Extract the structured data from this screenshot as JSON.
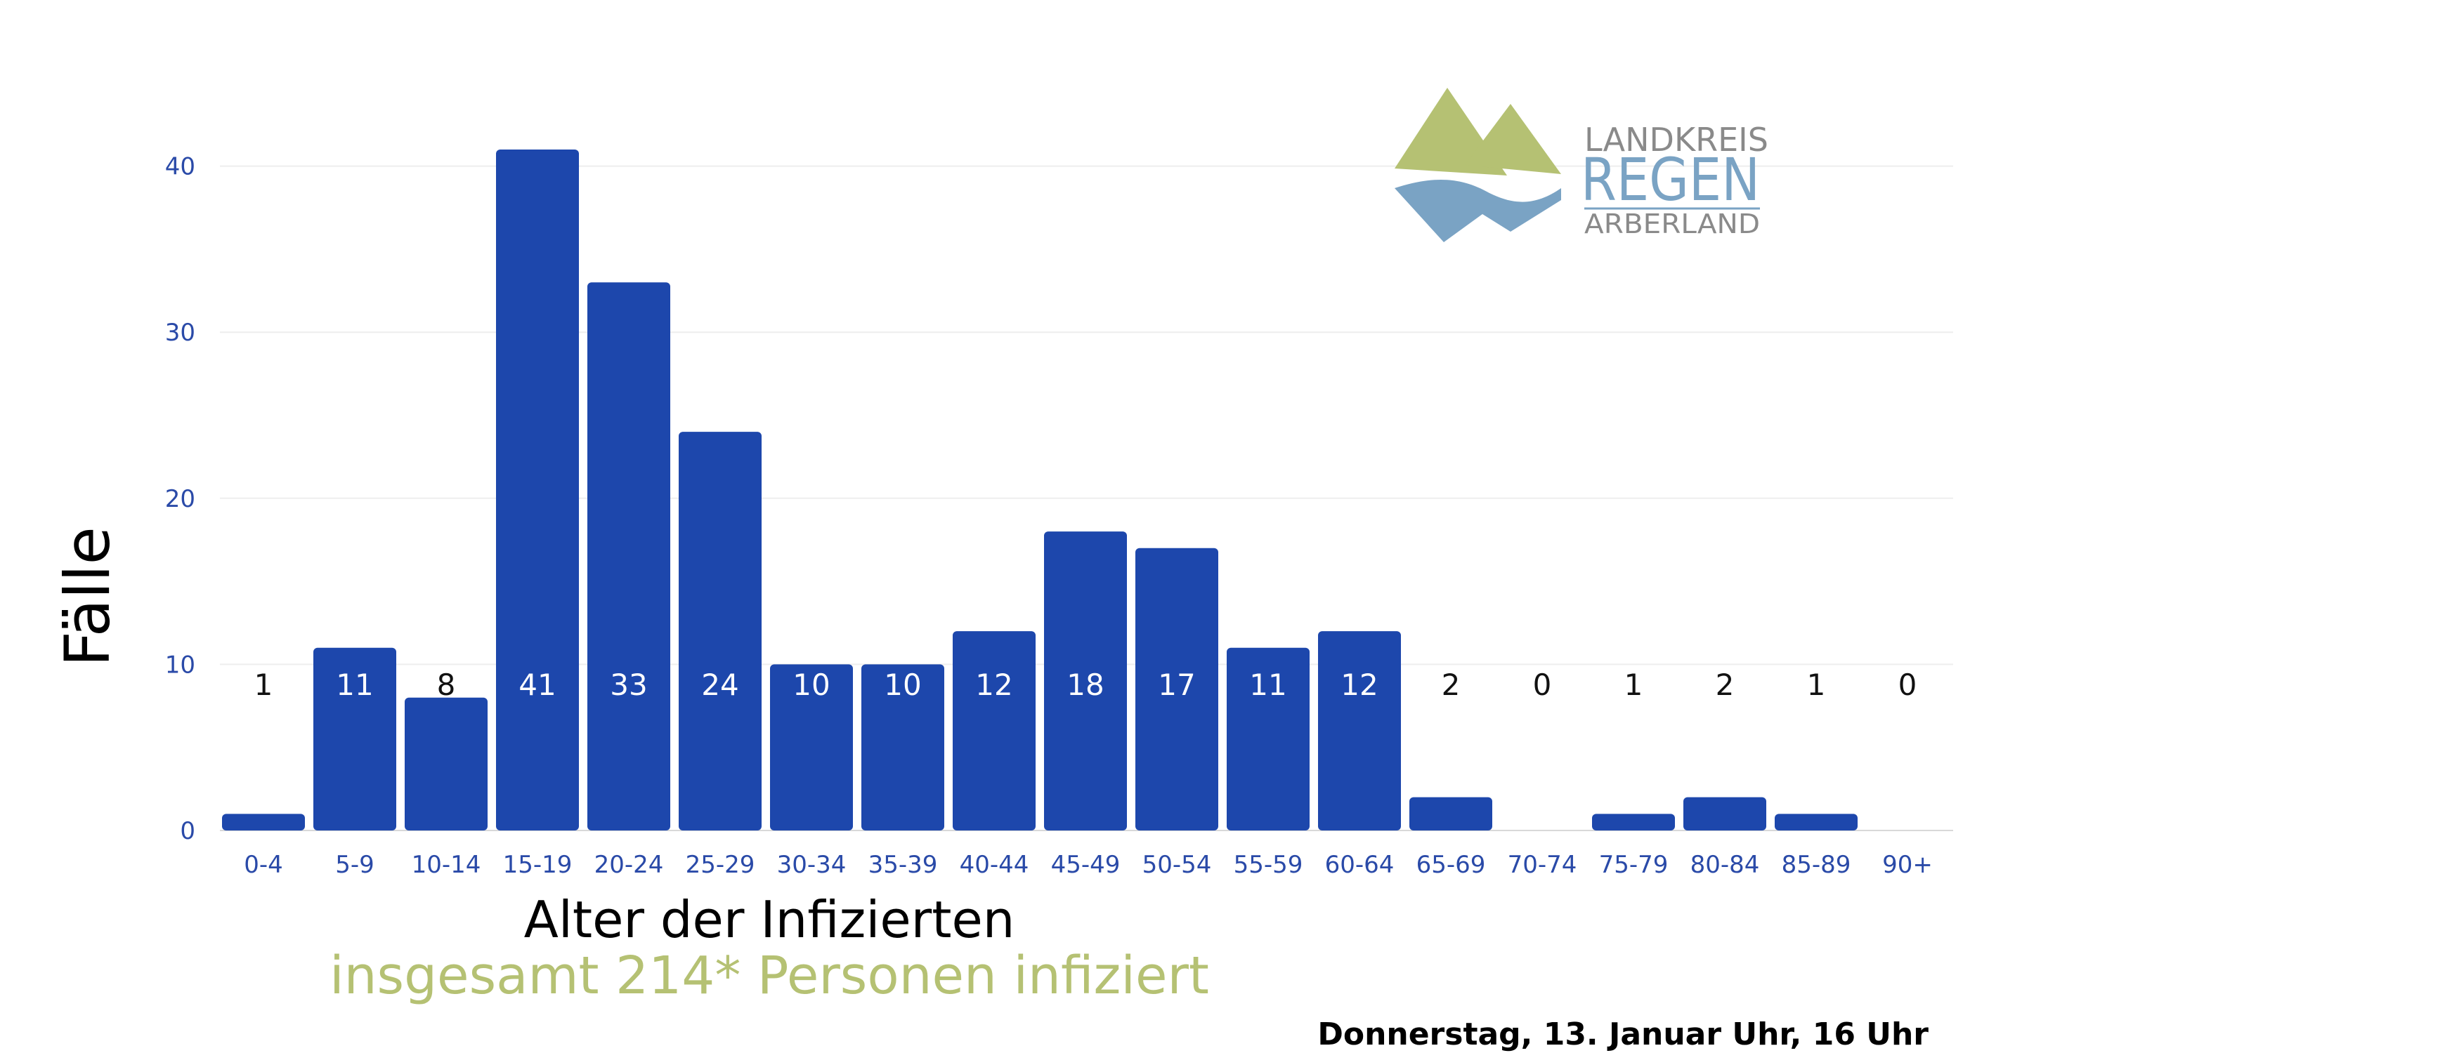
{
  "chart_data": {
    "type": "bar",
    "categories": [
      "0-4",
      "5-9",
      "10-14",
      "15-19",
      "20-24",
      "25-29",
      "30-34",
      "35-39",
      "40-44",
      "45-49",
      "50-54",
      "55-59",
      "60-64",
      "65-69",
      "70-74",
      "75-79",
      "80-84",
      "85-89",
      "90+"
    ],
    "values": [
      1,
      11,
      8,
      41,
      33,
      24,
      10,
      10,
      12,
      18,
      17,
      11,
      12,
      2,
      0,
      1,
      2,
      1,
      0
    ],
    "data_labels": [
      "1",
      "11",
      "8",
      "41",
      "33",
      "24",
      "10",
      "10",
      "12",
      "18",
      "17",
      "11",
      "12",
      "2",
      "0",
      "1",
      "2",
      "1",
      "0"
    ],
    "ylabel": "Fälle",
    "xlabel": "Alter der Infizierten",
    "ylim": [
      0,
      50
    ],
    "yticks": [
      0,
      10,
      20,
      30,
      40
    ],
    "grid": true,
    "bar_color": "#1d47ac"
  },
  "subtitle": "insgesamt 214* Personen infiziert",
  "date_text": "Donnerstag, 13. Januar Uhr, 16 Uhr",
  "logo": {
    "line1": "LANDKREIS",
    "line2": "REGEN",
    "line3": "ARBERLAND"
  },
  "colors": {
    "bar": "#1d47ac",
    "subtitle": "#b5c173",
    "logo_green": "#b5c173",
    "logo_blue": "#7aa3c4",
    "logo_gray": "#8a8a8a"
  }
}
